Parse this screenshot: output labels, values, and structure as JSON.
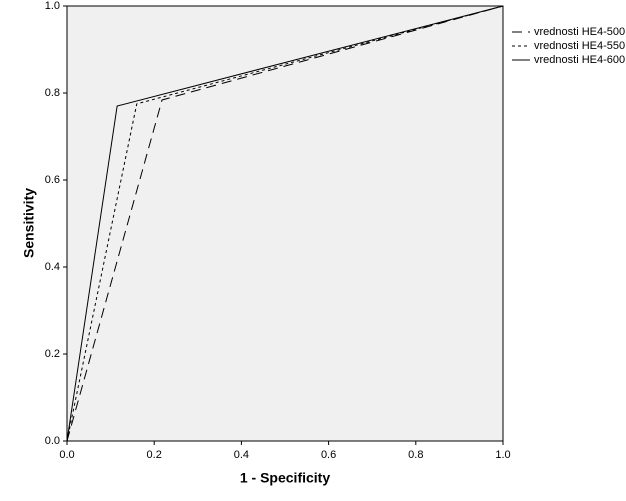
{
  "chart_data": {
    "type": "line",
    "x_label": "1 - Specificity",
    "y_label": "Sensitivity",
    "xlim": [
      0,
      1
    ],
    "ylim": [
      0,
      1
    ],
    "xticks": [
      {
        "value": 0,
        "label": "0.0"
      },
      0.2,
      0.4,
      0.6,
      0.8,
      {
        "value": 1,
        "label": "1.0"
      }
    ],
    "yticks": [
      {
        "value": 0,
        "label": "0.0"
      },
      0.2,
      0.4,
      0.6,
      0.8,
      {
        "value": 1,
        "label": "1.0"
      }
    ],
    "background": "#f0f0f0",
    "legend": "right",
    "series": [
      {
        "name": "vrednosti HE4-500",
        "color": "#000000",
        "line_style": "long-dash",
        "x": [
          0,
          0.218,
          1
        ],
        "values": [
          0,
          0.784,
          1
        ]
      },
      {
        "name": "vrednosti HE4-550",
        "color": "#000000",
        "line_style": "short-dash",
        "x": [
          0,
          0.16,
          1
        ],
        "values": [
          0,
          0.775,
          1
        ]
      },
      {
        "name": "vrednosti HE4-600",
        "color": "#000000",
        "line_style": "solid",
        "x": [
          0,
          0.115,
          1
        ],
        "values": [
          0,
          0.77,
          1
        ]
      }
    ]
  }
}
